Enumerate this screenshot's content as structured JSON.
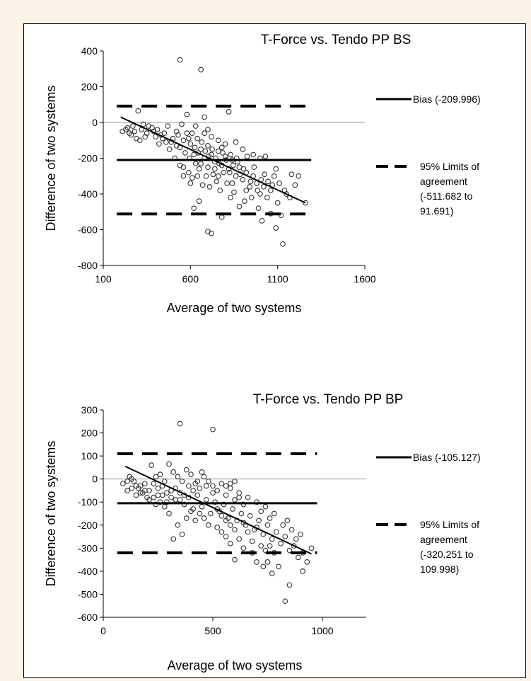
{
  "chart_data": [
    {
      "type": "scatter",
      "title": "T-Force vs. Tendo PP BS",
      "xlabel": "Average of two systems",
      "ylabel": "Difference of two systems",
      "xlim": [
        100,
        1600
      ],
      "ylim": [
        -800,
        400
      ],
      "xticks": [
        100,
        600,
        1100,
        1600
      ],
      "yticks": [
        -800,
        -600,
        -400,
        -200,
        0,
        200,
        400
      ],
      "bias": -209.996,
      "loa": [
        -511.682,
        91.691
      ],
      "trend": [
        [
          200,
          30
        ],
        [
          1260,
          -450
        ]
      ],
      "legend": [
        {
          "name": "Bias (-209.996)",
          "style": "solid"
        },
        {
          "name": "95% Limits of agreement (-511.682 to 91.691)",
          "lines": [
            "95% Limits of",
            "agreement",
            "(-511.682 to",
            "91.691)"
          ],
          "style": "dashed"
        }
      ],
      "points": [
        [
          540,
          350
        ],
        [
          660,
          295
        ],
        [
          820,
          60
        ],
        [
          580,
          45
        ],
        [
          680,
          30
        ],
        [
          300,
          65
        ],
        [
          210,
          -50
        ],
        [
          240,
          -30
        ],
        [
          260,
          -70
        ],
        [
          290,
          -90
        ],
        [
          320,
          -40
        ],
        [
          350,
          -60
        ],
        [
          380,
          -30
        ],
        [
          400,
          -80
        ],
        [
          420,
          -120
        ],
        [
          450,
          -60
        ],
        [
          470,
          -20
        ],
        [
          500,
          -90
        ],
        [
          520,
          -50
        ],
        [
          540,
          -140
        ],
        [
          560,
          -100
        ],
        [
          580,
          -60
        ],
        [
          600,
          -120
        ],
        [
          620,
          -180
        ],
        [
          640,
          -90
        ],
        [
          660,
          -150
        ],
        [
          680,
          -200
        ],
        [
          700,
          -130
        ],
        [
          720,
          -180
        ],
        [
          740,
          -220
        ],
        [
          760,
          -160
        ],
        [
          780,
          -240
        ],
        [
          800,
          -190
        ],
        [
          820,
          -260
        ],
        [
          840,
          -210
        ],
        [
          860,
          -300
        ],
        [
          880,
          -250
        ],
        [
          900,
          -320
        ],
        [
          920,
          -280
        ],
        [
          940,
          -360
        ],
        [
          960,
          -300
        ],
        [
          980,
          -340
        ],
        [
          1000,
          -400
        ],
        [
          1020,
          -360
        ],
        [
          1040,
          -420
        ],
        [
          1060,
          -380
        ],
        [
          1080,
          -300
        ],
        [
          1100,
          -450
        ],
        [
          1120,
          -520
        ],
        [
          1130,
          -680
        ],
        [
          1150,
          -400
        ],
        [
          1180,
          -290
        ],
        [
          1220,
          -300
        ],
        [
          1260,
          -450
        ],
        [
          560,
          -250
        ],
        [
          590,
          -280
        ],
        [
          610,
          -310
        ],
        [
          630,
          -230
        ],
        [
          650,
          -260
        ],
        [
          670,
          -350
        ],
        [
          690,
          -300
        ],
        [
          710,
          -360
        ],
        [
          730,
          -290
        ],
        [
          750,
          -330
        ],
        [
          770,
          -380
        ],
        [
          790,
          -280
        ],
        [
          810,
          -340
        ],
        [
          830,
          -420
        ],
        [
          850,
          -390
        ],
        [
          880,
          -470
        ],
        [
          910,
          -440
        ],
        [
          950,
          -420
        ],
        [
          990,
          -480
        ],
        [
          1010,
          -550
        ],
        [
          1060,
          -510
        ],
        [
          1090,
          -590
        ],
        [
          620,
          -480
        ],
        [
          700,
          -610
        ],
        [
          720,
          -620
        ],
        [
          780,
          -530
        ],
        [
          650,
          -440
        ],
        [
          600,
          -340
        ],
        [
          560,
          -300
        ],
        [
          540,
          -240
        ],
        [
          510,
          -200
        ],
        [
          480,
          -150
        ],
        [
          460,
          -110
        ],
        [
          430,
          -70
        ],
        [
          390,
          -50
        ],
        [
          360,
          -20
        ],
        [
          340,
          -80
        ],
        [
          310,
          -100
        ],
        [
          280,
          -50
        ],
        [
          250,
          -60
        ],
        [
          230,
          -40
        ],
        [
          270,
          -20
        ],
        [
          330,
          -10
        ],
        [
          410,
          -40
        ],
        [
          440,
          -90
        ],
        [
          490,
          -110
        ],
        [
          530,
          -70
        ],
        [
          570,
          -170
        ],
        [
          595,
          -200
        ],
        [
          625,
          -140
        ],
        [
          645,
          -170
        ],
        [
          665,
          -110
        ],
        [
          685,
          -160
        ],
        [
          705,
          -190
        ],
        [
          725,
          -150
        ],
        [
          745,
          -200
        ],
        [
          765,
          -230
        ],
        [
          785,
          -170
        ],
        [
          805,
          -210
        ],
        [
          825,
          -280
        ],
        [
          845,
          -240
        ],
        [
          865,
          -200
        ],
        [
          885,
          -290
        ],
        [
          905,
          -260
        ],
        [
          925,
          -190
        ],
        [
          945,
          -330
        ],
        [
          965,
          -250
        ],
        [
          985,
          -380
        ],
        [
          1005,
          -320
        ],
        [
          1025,
          -290
        ],
        [
          1045,
          -330
        ],
        [
          1070,
          -350
        ],
        [
          1090,
          -260
        ],
        [
          1110,
          -340
        ],
        [
          1140,
          -380
        ],
        [
          1170,
          -420
        ],
        [
          1200,
          -350
        ],
        [
          860,
          -110
        ],
        [
          900,
          -150
        ],
        [
          760,
          -100
        ],
        [
          720,
          -80
        ],
        [
          680,
          -60
        ],
        [
          800,
          -120
        ],
        [
          740,
          -260
        ],
        [
          660,
          -230
        ],
        [
          640,
          -300
        ],
        [
          700,
          -250
        ],
        [
          760,
          -300
        ],
        [
          840,
          -340
        ],
        [
          920,
          -380
        ],
        [
          1030,
          -190
        ],
        [
          1000,
          -200
        ],
        [
          960,
          -180
        ],
        [
          830,
          -180
        ],
        [
          870,
          -220
        ],
        [
          780,
          -140
        ],
        [
          610,
          -60
        ],
        [
          700,
          -40
        ],
        [
          630,
          -20
        ],
        [
          550,
          -10
        ],
        [
          590,
          -90
        ],
        [
          520,
          -130
        ]
      ]
    },
    {
      "type": "scatter",
      "title": "T-Force vs. Tendo PP BP",
      "xlabel": "Average of two systems",
      "ylabel": "Difference of two systems",
      "xlim": [
        0,
        1200
      ],
      "ylim": [
        -600,
        300
      ],
      "xticks": [
        0,
        500,
        1000
      ],
      "yticks": [
        -600,
        -500,
        -400,
        -300,
        -200,
        -100,
        0,
        100,
        200,
        300
      ],
      "bias": -105.127,
      "loa": [
        -320.251,
        109.998
      ],
      "trend": [
        [
          100,
          55
        ],
        [
          950,
          -325
        ]
      ],
      "legend": [
        {
          "name": "Bias (-105.127)",
          "style": "solid"
        },
        {
          "name": "95% Limits of agreement (-320.251 to 109.998)",
          "lines": [
            "95% Limits of",
            "agreement",
            "(-320.251 to",
            "109.998)"
          ],
          "style": "dashed"
        }
      ],
      "points": [
        [
          350,
          240
        ],
        [
          500,
          215
        ],
        [
          300,
          65
        ],
        [
          220,
          60
        ],
        [
          380,
          40
        ],
        [
          450,
          30
        ],
        [
          90,
          -20
        ],
        [
          110,
          -10
        ],
        [
          130,
          -40
        ],
        [
          150,
          -30
        ],
        [
          170,
          -60
        ],
        [
          190,
          -20
        ],
        [
          210,
          -50
        ],
        [
          230,
          -80
        ],
        [
          250,
          -40
        ],
        [
          270,
          -70
        ],
        [
          290,
          -100
        ],
        [
          310,
          -50
        ],
        [
          330,
          -90
        ],
        [
          350,
          -60
        ],
        [
          370,
          -110
        ],
        [
          390,
          -80
        ],
        [
          410,
          -130
        ],
        [
          430,
          -70
        ],
        [
          450,
          -120
        ],
        [
          470,
          -90
        ],
        [
          490,
          -150
        ],
        [
          510,
          -100
        ],
        [
          530,
          -140
        ],
        [
          550,
          -110
        ],
        [
          570,
          -170
        ],
        [
          590,
          -130
        ],
        [
          610,
          -180
        ],
        [
          630,
          -150
        ],
        [
          650,
          -200
        ],
        [
          670,
          -160
        ],
        [
          690,
          -220
        ],
        [
          710,
          -180
        ],
        [
          730,
          -240
        ],
        [
          750,
          -200
        ],
        [
          770,
          -260
        ],
        [
          790,
          -230
        ],
        [
          810,
          -280
        ],
        [
          830,
          -250
        ],
        [
          850,
          -310
        ],
        [
          870,
          -290
        ],
        [
          890,
          -340
        ],
        [
          910,
          -320
        ],
        [
          930,
          -360
        ],
        [
          950,
          -300
        ],
        [
          910,
          -400
        ],
        [
          850,
          -460
        ],
        [
          830,
          -530
        ],
        [
          770,
          -410
        ],
        [
          730,
          -380
        ],
        [
          750,
          -360
        ],
        [
          800,
          -380
        ],
        [
          700,
          -360
        ],
        [
          680,
          -320
        ],
        [
          640,
          -300
        ],
        [
          600,
          -350
        ],
        [
          580,
          -280
        ],
        [
          560,
          -250
        ],
        [
          540,
          -230
        ],
        [
          520,
          -210
        ],
        [
          480,
          -200
        ],
        [
          460,
          -170
        ],
        [
          440,
          -150
        ],
        [
          420,
          -180
        ],
        [
          400,
          -140
        ],
        [
          380,
          -170
        ],
        [
          360,
          -240
        ],
        [
          320,
          -260
        ],
        [
          340,
          -200
        ],
        [
          300,
          -150
        ],
        [
          280,
          -120
        ],
        [
          260,
          -100
        ],
        [
          240,
          -110
        ],
        [
          200,
          -80
        ],
        [
          180,
          -60
        ],
        [
          160,
          -40
        ],
        [
          140,
          -10
        ],
        [
          120,
          10
        ],
        [
          240,
          10
        ],
        [
          260,
          20
        ],
        [
          280,
          -10
        ],
        [
          320,
          30
        ],
        [
          340,
          10
        ],
        [
          360,
          -10
        ],
        [
          400,
          20
        ],
        [
          420,
          -20
        ],
        [
          440,
          -40
        ],
        [
          460,
          10
        ],
        [
          480,
          -10
        ],
        [
          500,
          -30
        ],
        [
          520,
          -50
        ],
        [
          540,
          -20
        ],
        [
          560,
          -70
        ],
        [
          580,
          -40
        ],
        [
          600,
          -90
        ],
        [
          620,
          -60
        ],
        [
          640,
          -110
        ],
        [
          660,
          -80
        ],
        [
          700,
          -100
        ],
        [
          720,
          -140
        ],
        [
          740,
          -120
        ],
        [
          760,
          -170
        ],
        [
          780,
          -150
        ],
        [
          820,
          -200
        ],
        [
          840,
          -180
        ],
        [
          860,
          -220
        ],
        [
          880,
          -260
        ],
        [
          900,
          -240
        ],
        [
          560,
          -30
        ],
        [
          580,
          -20
        ],
        [
          600,
          -10
        ],
        [
          620,
          -80
        ],
        [
          500,
          -60
        ],
        [
          470,
          -30
        ],
        [
          430,
          -10
        ],
        [
          410,
          -50
        ],
        [
          390,
          -30
        ],
        [
          370,
          -70
        ],
        [
          350,
          -90
        ],
        [
          330,
          -40
        ],
        [
          310,
          -80
        ],
        [
          290,
          -60
        ],
        [
          270,
          -30
        ],
        [
          250,
          -70
        ],
        [
          230,
          -20
        ],
        [
          210,
          -90
        ],
        [
          190,
          -50
        ],
        [
          170,
          -30
        ],
        [
          150,
          -70
        ],
        [
          130,
          0
        ],
        [
          110,
          -50
        ],
        [
          640,
          -190
        ],
        [
          660,
          -230
        ],
        [
          680,
          -270
        ],
        [
          700,
          -210
        ],
        [
          720,
          -290
        ],
        [
          740,
          -310
        ],
        [
          760,
          -290
        ],
        [
          780,
          -320
        ],
        [
          620,
          -260
        ],
        [
          600,
          -220
        ],
        [
          580,
          -200
        ],
        [
          560,
          -180
        ],
        [
          540,
          -160
        ],
        [
          520,
          -130
        ]
      ]
    }
  ]
}
